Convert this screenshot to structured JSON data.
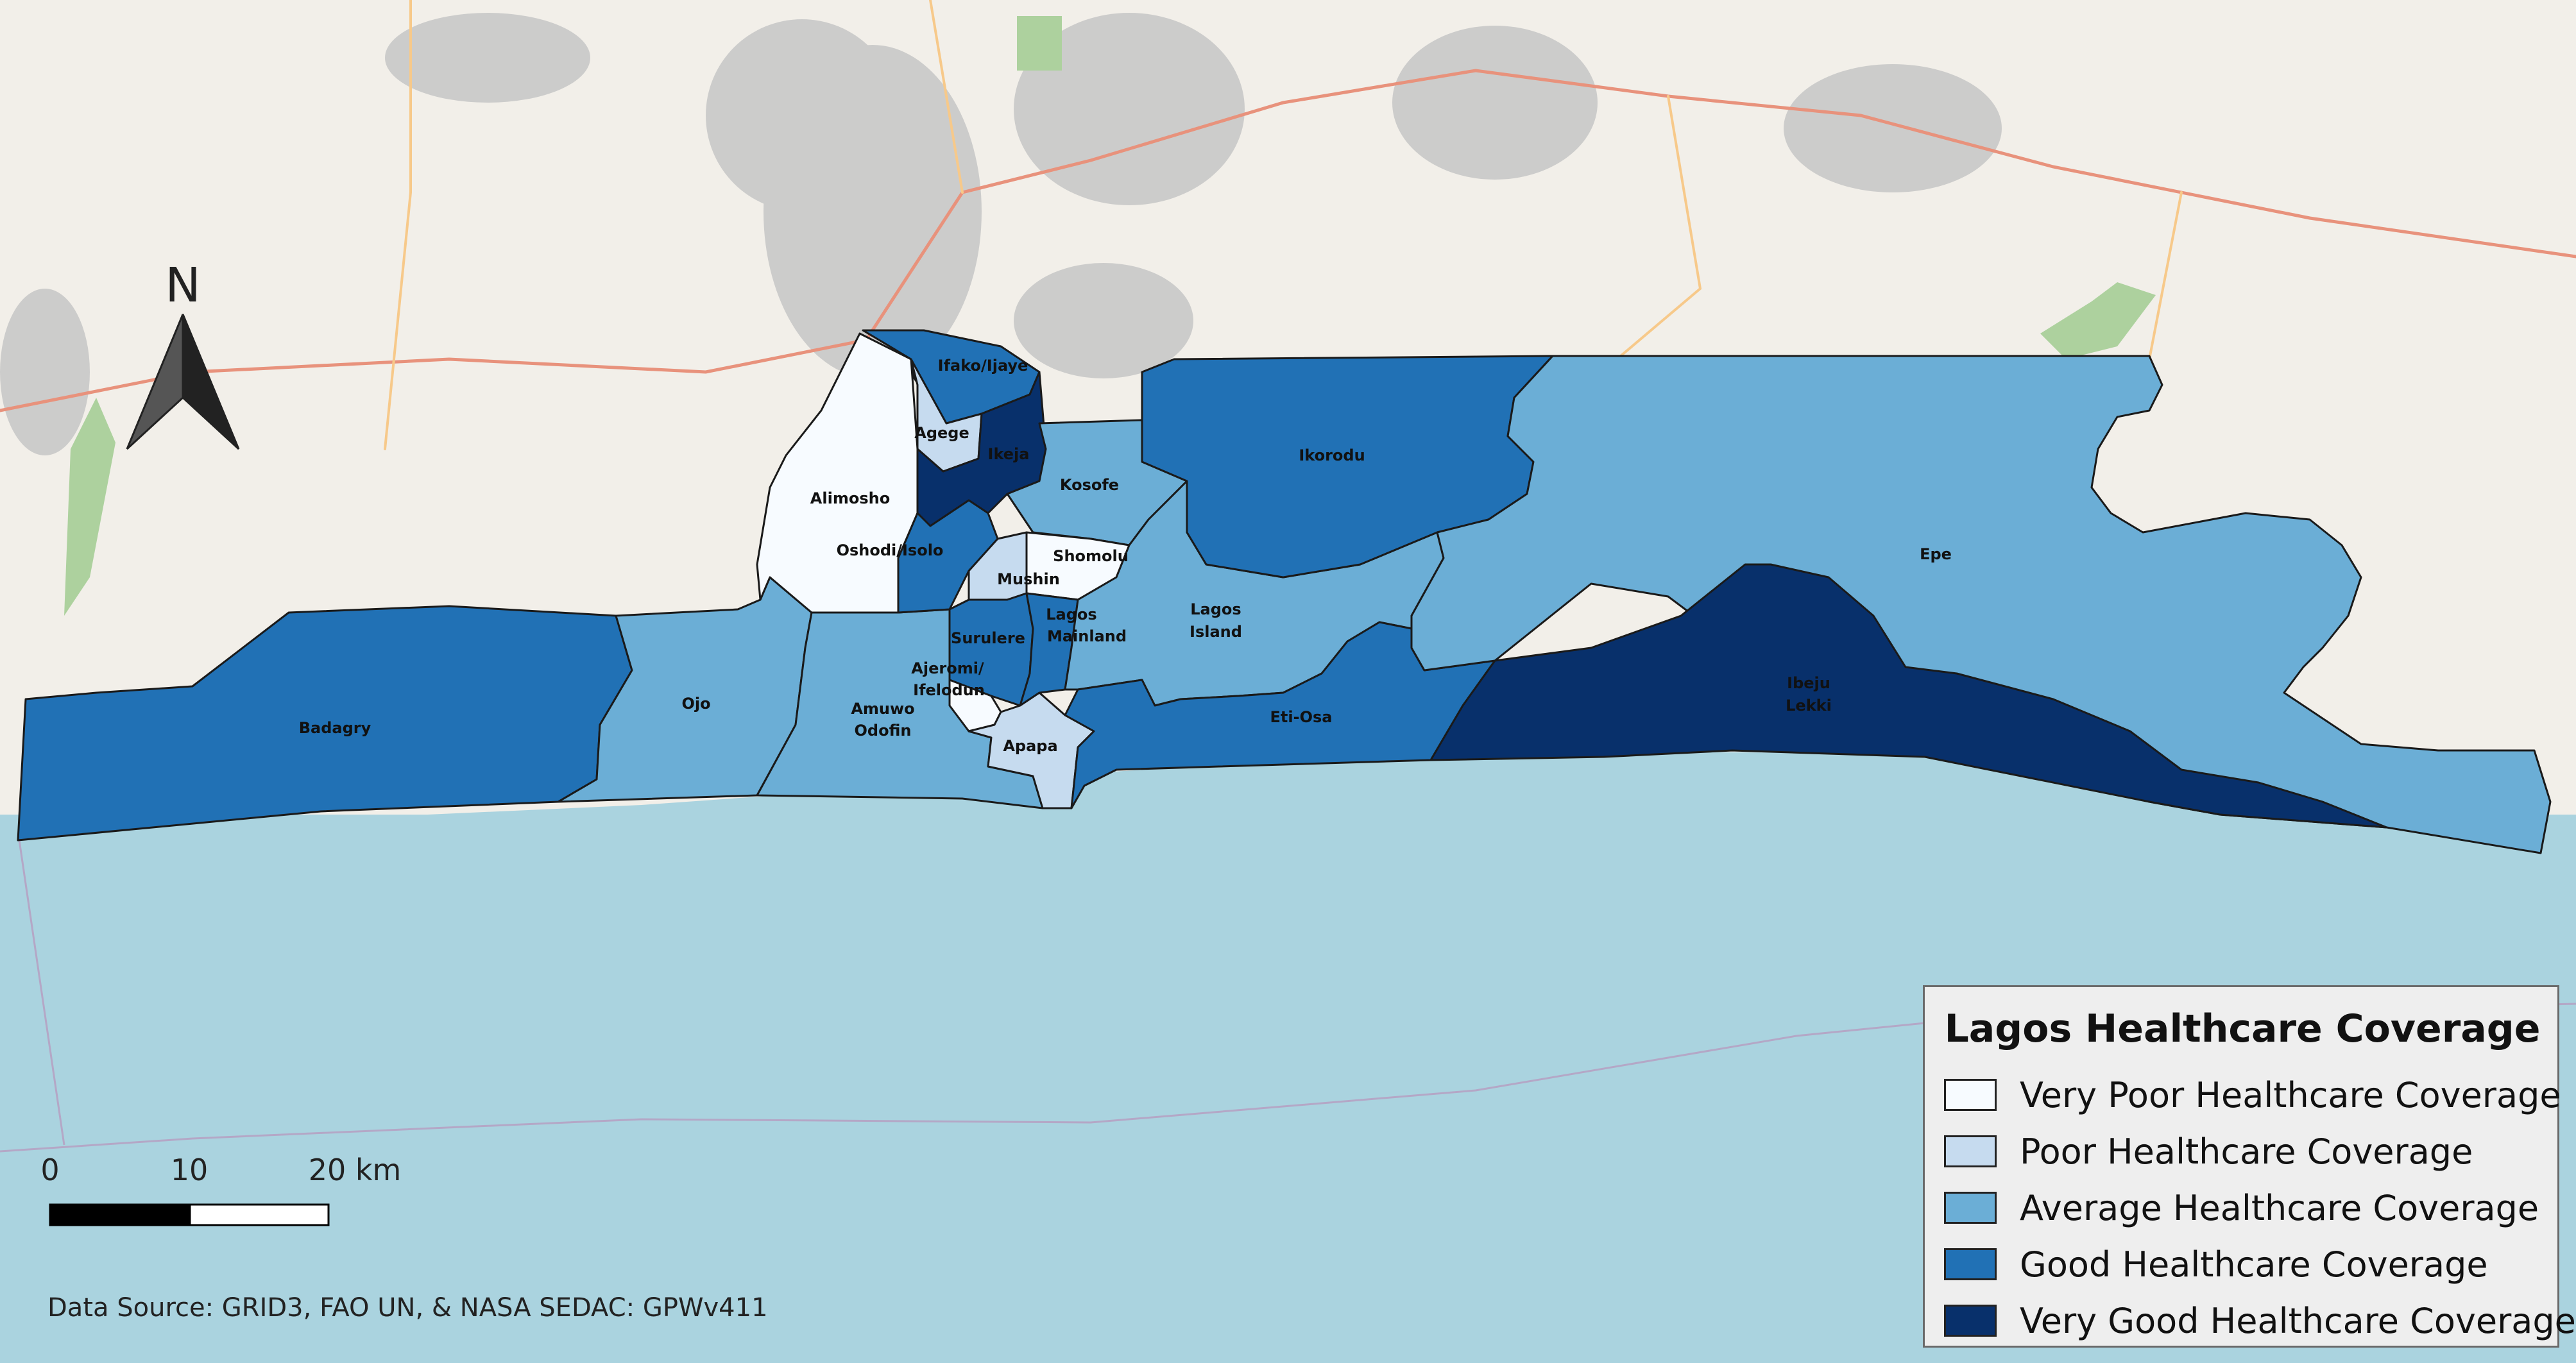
{
  "map": {
    "legend": {
      "title": "Lagos Healthcare Coverage",
      "items": [
        {
          "label": "Very Poor Healthcare Coverage",
          "color": "#f7fbff"
        },
        {
          "label": "Poor Healthcare Coverage",
          "color": "#c6dbef"
        },
        {
          "label": "Average Healthcare Coverage",
          "color": "#6baed6"
        },
        {
          "label": "Good Healthcare Coverage",
          "color": "#2171b5"
        },
        {
          "label": "Very Good Healthcare Coverage",
          "color": "#08306b"
        }
      ]
    },
    "regions": {
      "badagry": {
        "name": "Badagry",
        "coverage": "Good"
      },
      "ojo": {
        "name": "Ojo",
        "coverage": "Average"
      },
      "amuwo_odofin": {
        "line1": "Amuwo",
        "line2": "Odofin",
        "coverage": "Average"
      },
      "alimosho": {
        "name": "Alimosho",
        "coverage": "Very Poor"
      },
      "ifako_ijaye": {
        "name": "Ifako/Ijaye",
        "coverage": "Good"
      },
      "agege": {
        "name": "Agege",
        "coverage": "Poor"
      },
      "ikeja": {
        "name": "Ikeja",
        "coverage": "Very Good"
      },
      "kosofe": {
        "name": "Kosofe",
        "coverage": "Average"
      },
      "oshodi_isolo": {
        "name": "Oshodi/Isolo",
        "coverage": "Good"
      },
      "shomolu": {
        "name": "Shomolu",
        "coverage": "Very Poor"
      },
      "mushin": {
        "name": "Mushin",
        "coverage": "Poor"
      },
      "surulere": {
        "name": "Surulere",
        "coverage": "Good"
      },
      "lagos_mainland": {
        "line1": "Lagos",
        "line2": "Mainland",
        "coverage": "Good"
      },
      "ajeromi_ifelodun": {
        "line1": "Ajeromi/",
        "line2": "Ifelodun",
        "coverage": "Very Poor"
      },
      "apapa": {
        "name": "Apapa",
        "coverage": "Poor"
      },
      "lagos_island": {
        "line1": "Lagos",
        "line2": "Island",
        "coverage": "Average"
      },
      "eti_osa": {
        "name": "Eti-Osa",
        "coverage": "Good"
      },
      "ikorodu": {
        "name": "Ikorodu",
        "coverage": "Good"
      },
      "epe": {
        "name": "Epe",
        "coverage": "Average"
      },
      "ibeju_lekki": {
        "line1": "Ibeju",
        "line2": "Lekki",
        "coverage": "Very Good"
      }
    },
    "north_arrow": {
      "letter": "N"
    },
    "scale_bar": {
      "ticks": [
        "0",
        "10",
        "20 km"
      ]
    },
    "data_source": "Data Source: GRID3, FAO UN, & NASA SEDAC: GPWv411",
    "colors": {
      "sea": "#aad3df",
      "land": "#f2efe9",
      "urban": "#c4c4c4",
      "park": "#add19e",
      "road_major": "#e8927c",
      "road_minor": "#f7c98a",
      "boundary": "#1a1a1a"
    }
  }
}
